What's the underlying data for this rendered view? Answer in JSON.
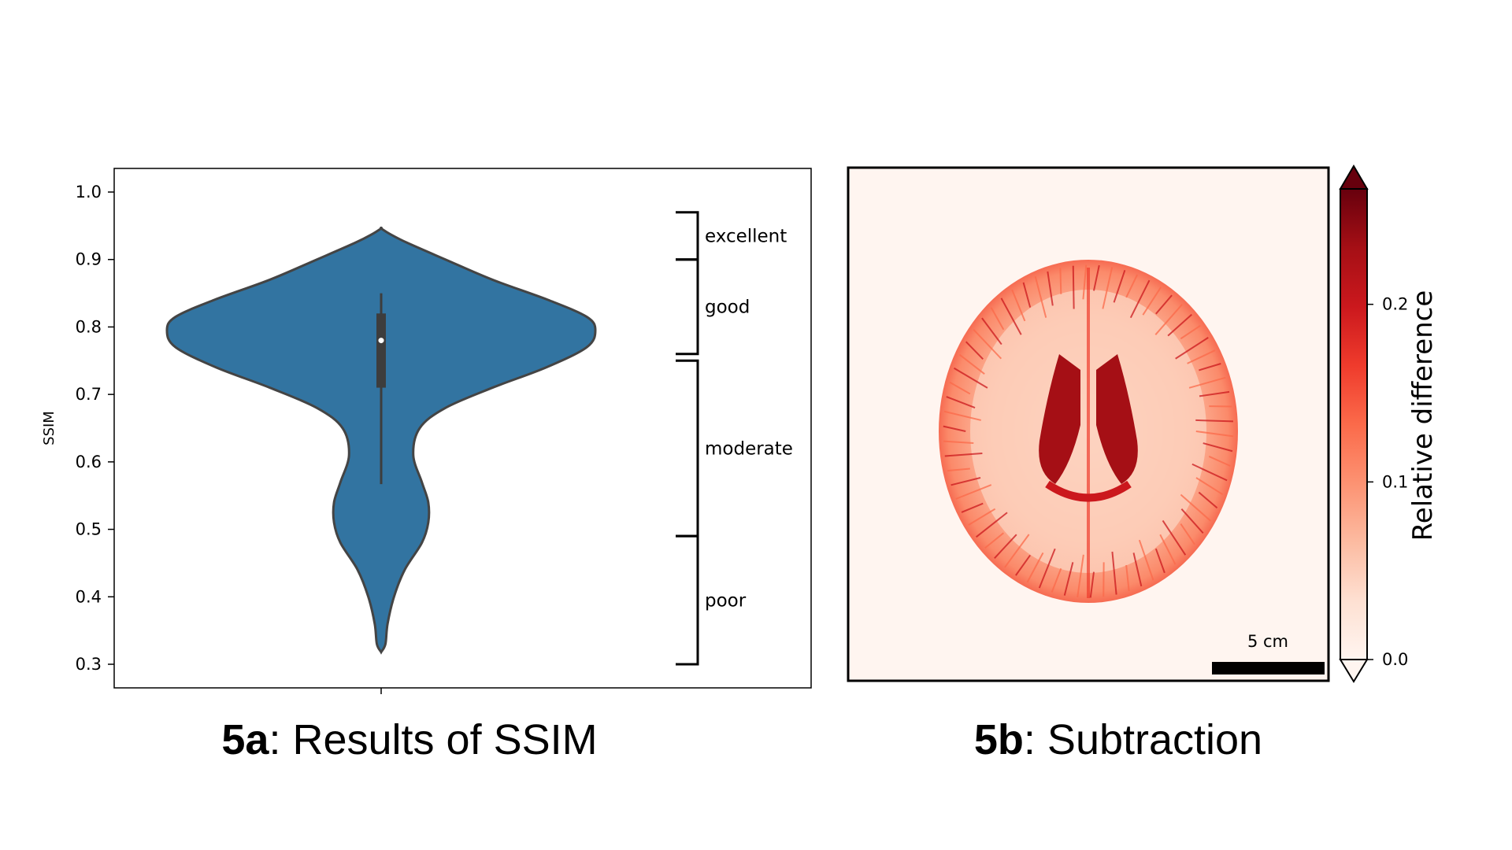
{
  "chart_data": [
    {
      "type": "violin",
      "ylabel": "SSIM",
      "ylim": [
        0.265,
        1.035
      ],
      "yticks": [
        "0.3",
        "0.4",
        "0.5",
        "0.6",
        "0.7",
        "0.8",
        "0.9",
        "1.0"
      ],
      "ytick_values": [
        0.3,
        0.4,
        0.5,
        0.6,
        0.7,
        0.8,
        0.9,
        1.0
      ],
      "color": "#3274a1",
      "edge_color": "#444444",
      "density_profile": [
        {
          "y": 0.318,
          "w": 0.0
        },
        {
          "y": 0.33,
          "w": 0.02
        },
        {
          "y": 0.36,
          "w": 0.03
        },
        {
          "y": 0.4,
          "w": 0.06
        },
        {
          "y": 0.44,
          "w": 0.11
        },
        {
          "y": 0.48,
          "w": 0.19
        },
        {
          "y": 0.51,
          "w": 0.22
        },
        {
          "y": 0.54,
          "w": 0.22
        },
        {
          "y": 0.57,
          "w": 0.19
        },
        {
          "y": 0.61,
          "w": 0.15
        },
        {
          "y": 0.65,
          "w": 0.18
        },
        {
          "y": 0.68,
          "w": 0.3
        },
        {
          "y": 0.71,
          "w": 0.52
        },
        {
          "y": 0.74,
          "w": 0.77
        },
        {
          "y": 0.77,
          "w": 0.96
        },
        {
          "y": 0.795,
          "w": 1.0
        },
        {
          "y": 0.815,
          "w": 0.96
        },
        {
          "y": 0.84,
          "w": 0.78
        },
        {
          "y": 0.87,
          "w": 0.52
        },
        {
          "y": 0.9,
          "w": 0.3
        },
        {
          "y": 0.925,
          "w": 0.12
        },
        {
          "y": 0.938,
          "w": 0.04
        },
        {
          "y": 0.946,
          "w": 0.0
        }
      ],
      "box": {
        "q1": 0.71,
        "q3": 0.82,
        "whisker_low": 0.567,
        "whisker_high": 0.85,
        "median": 0.78
      },
      "categories": [
        {
          "label": "excellent",
          "from": 0.9,
          "to": 0.97
        },
        {
          "label": "good",
          "from": 0.76,
          "to": 0.9
        },
        {
          "label": "moderate",
          "from": 0.49,
          "to": 0.75
        },
        {
          "label": "poor",
          "from": 0.3,
          "to": 0.49
        }
      ],
      "caption_bold": "5a",
      "caption_rest": ": Results of SSIM"
    },
    {
      "type": "heatmap",
      "colorbar_label": "Relative difference",
      "colorbar_ticks": [
        "0.0",
        "0.1",
        "0.2"
      ],
      "colorbar_tick_values": [
        0.0,
        0.1,
        0.2
      ],
      "colorbar_max": 0.265,
      "colormap": [
        "#fff5f0",
        "#fee0d2",
        "#fcbba1",
        "#fc9272",
        "#fb6a4a",
        "#ef3b2c",
        "#cb181d",
        "#a50f15",
        "#67000d"
      ],
      "scale_bar_label": "5 cm",
      "caption_bold": "5b",
      "caption_rest": ": Subtraction"
    }
  ]
}
